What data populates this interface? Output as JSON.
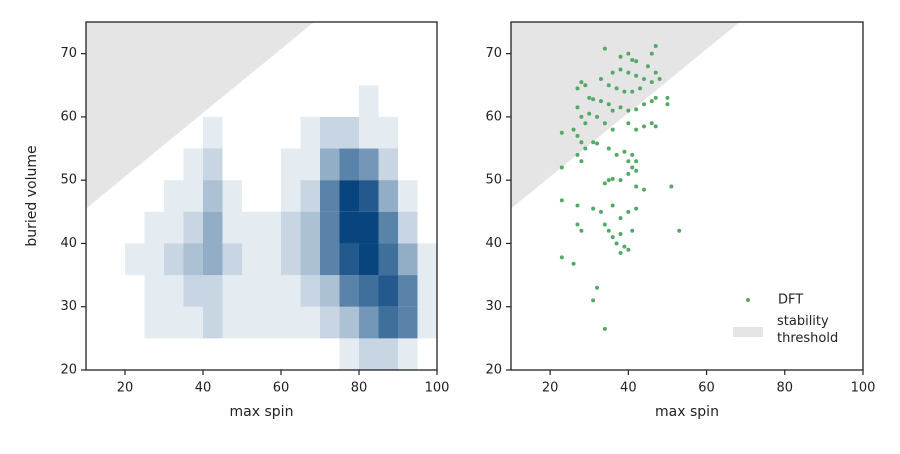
{
  "chart_data": [
    {
      "type": "heatmap",
      "xlabel": "max spin",
      "ylabel": "buried volume",
      "xlim": [
        10,
        100
      ],
      "ylim": [
        20,
        75
      ],
      "xticks": [
        20,
        40,
        60,
        80,
        100
      ],
      "yticks": [
        20,
        30,
        40,
        50,
        60,
        70
      ],
      "x_edges": [
        10,
        15,
        20,
        25,
        30,
        35,
        40,
        45,
        50,
        55,
        60,
        65,
        70,
        75,
        80,
        85,
        90,
        95,
        100
      ],
      "y_edges": [
        20,
        25,
        30,
        35,
        40,
        45,
        50,
        55,
        60,
        65,
        70,
        75
      ],
      "z": [
        [
          0,
          0,
          0,
          0,
          0,
          0,
          0,
          0,
          0,
          0,
          0,
          0,
          0,
          1,
          2,
          2,
          1,
          0
        ],
        [
          0,
          0,
          0,
          1,
          1,
          1,
          2,
          1,
          1,
          1,
          1,
          1,
          2,
          3,
          5,
          7,
          6,
          1
        ],
        [
          0,
          0,
          0,
          1,
          1,
          2,
          2,
          1,
          1,
          1,
          1,
          2,
          3,
          6,
          7,
          8,
          6,
          1
        ],
        [
          0,
          0,
          1,
          1,
          2,
          3,
          4,
          2,
          1,
          1,
          2,
          3,
          6,
          8,
          9,
          7,
          4,
          1
        ],
        [
          0,
          0,
          0,
          1,
          1,
          2,
          4,
          1,
          1,
          1,
          2,
          3,
          6,
          9,
          9,
          6,
          2,
          0
        ],
        [
          0,
          0,
          0,
          0,
          1,
          1,
          3,
          1,
          0,
          0,
          1,
          2,
          6,
          9,
          8,
          4,
          1,
          0
        ],
        [
          0,
          0,
          0,
          0,
          0,
          1,
          2,
          0,
          0,
          0,
          1,
          1,
          4,
          6,
          5,
          2,
          0,
          0
        ],
        [
          0,
          0,
          0,
          0,
          0,
          0,
          1,
          0,
          0,
          0,
          0,
          1,
          2,
          2,
          1,
          1,
          0,
          0
        ],
        [
          0,
          0,
          0,
          0,
          0,
          0,
          0,
          0,
          0,
          0,
          0,
          0,
          0,
          0,
          1,
          0,
          0,
          0
        ],
        [
          0,
          0,
          0,
          0,
          0,
          0,
          0,
          0,
          0,
          0,
          0,
          0,
          0,
          0,
          0,
          0,
          0,
          0
        ],
        [
          0,
          0,
          0,
          0,
          0,
          0,
          0,
          0,
          0,
          0,
          0,
          0,
          0,
          0,
          0,
          0,
          0,
          0
        ]
      ],
      "color": "#08457e",
      "threshold": {
        "x": [
          10,
          68.5
        ],
        "y": [
          45.5,
          75
        ],
        "color": "#e5e5e5"
      }
    },
    {
      "type": "scatter",
      "xlabel": "max spin",
      "xlim": [
        10,
        100
      ],
      "ylim": [
        20,
        75
      ],
      "xticks": [
        20,
        40,
        60,
        80,
        100
      ],
      "yticks": [
        20,
        30,
        40,
        50,
        60,
        70
      ],
      "series": [
        {
          "name": "DFT",
          "color": "#55a868",
          "x": [
            34,
            38,
            40,
            41,
            42,
            47,
            46,
            45,
            47,
            44,
            46,
            48,
            36,
            38,
            40,
            42,
            33,
            35,
            37,
            39,
            41,
            43,
            28,
            29,
            27,
            30,
            31,
            33,
            35,
            36,
            38,
            40,
            42,
            44,
            46,
            47,
            50,
            50,
            27,
            28,
            29,
            30,
            32,
            34,
            36,
            40,
            42,
            44,
            46,
            47,
            23,
            26,
            27,
            28,
            29,
            31,
            32,
            35,
            37,
            39,
            41,
            42,
            41,
            42,
            40,
            27,
            28,
            23,
            40,
            38,
            36,
            35,
            34,
            42,
            44,
            51,
            23,
            27,
            31,
            33,
            36,
            40,
            42,
            38,
            34,
            35,
            36,
            38,
            27,
            28,
            41,
            53,
            37,
            39,
            40,
            38,
            23,
            26,
            31,
            32,
            34
          ],
          "y": [
            70.8,
            69.5,
            70,
            69,
            68.8,
            71.2,
            70,
            68,
            67,
            66,
            65.5,
            66,
            67,
            67.5,
            67,
            66.5,
            66,
            65,
            64.5,
            64,
            64,
            64.5,
            65.5,
            65,
            64.5,
            63,
            62.8,
            62.5,
            62,
            61,
            61.5,
            61,
            61.2,
            62,
            62.5,
            63,
            63,
            62,
            61.5,
            60,
            59,
            60.5,
            60,
            59,
            58,
            59,
            58,
            58.5,
            59,
            58.5,
            57.5,
            58,
            57,
            56,
            55,
            56,
            55.8,
            55,
            54,
            54.5,
            54,
            53,
            52,
            51.5,
            53,
            54,
            53,
            52,
            51,
            50,
            50.2,
            50,
            49.5,
            49,
            48.5,
            49,
            46.8,
            46,
            45.5,
            45,
            46,
            45,
            45.5,
            44,
            43,
            42,
            41,
            41.5,
            43,
            42,
            42,
            42,
            40,
            39.5,
            39,
            38.5,
            37.8,
            36.8,
            31,
            33,
            26.5
          ]
        }
      ],
      "threshold": {
        "name": "stability threshold",
        "x": [
          10,
          68.5
        ],
        "y": [
          45.5,
          75
        ],
        "color": "#e5e5e5"
      },
      "legend": "lower right"
    }
  ]
}
